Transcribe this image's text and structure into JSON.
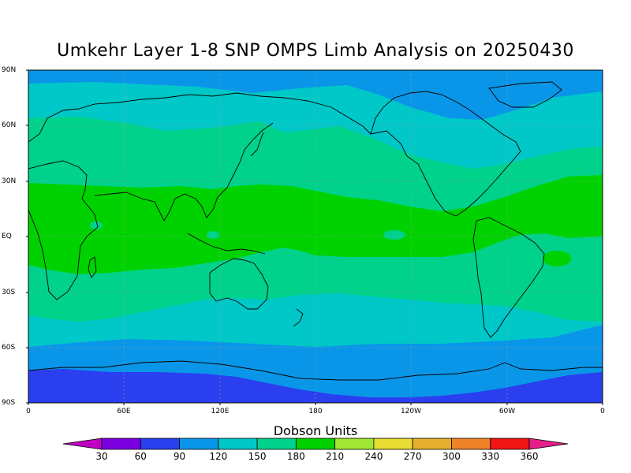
{
  "title": "Umkehr Layer 1-8 SNP OMPS Limb Analysis on 20250430",
  "y_ticks": [
    "90N",
    "60N",
    "30N",
    "EQ",
    "30S",
    "60S",
    "90S"
  ],
  "x_ticks": [
    "0",
    "60E",
    "120E",
    "180",
    "120W",
    "60W",
    "0"
  ],
  "colorbar": {
    "title": "Dobson Units",
    "labels": [
      "30",
      "60",
      "90",
      "120",
      "150",
      "180",
      "210",
      "240",
      "270",
      "300",
      "330",
      "360"
    ],
    "colors": [
      "#c000c0",
      "#7a00e0",
      "#2a3ff0",
      "#0a96e8",
      "#00c8c8",
      "#00d28c",
      "#00d200",
      "#a0e632",
      "#e6dc32",
      "#e6af2d",
      "#f08228",
      "#f01414",
      "#e61e8c"
    ]
  },
  "map_colors": {
    "band_90_120": "#0a96e8",
    "band_60_90": "#2a3ff0",
    "band_120_150": "#00c8c8",
    "band_150_180": "#00d28c",
    "band_180_210": "#00d200",
    "grid": "#9a9a9a",
    "coast": "#000000"
  }
}
